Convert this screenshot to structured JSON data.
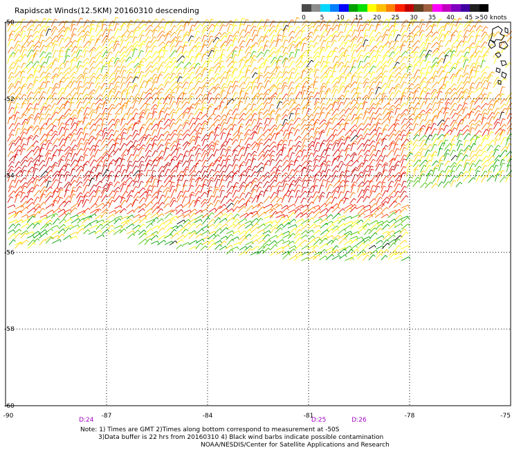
{
  "title": "Rapidscat Winds(12.5KM) 20160310 descending",
  "legend": {
    "unit": ">50 knots",
    "labels": [
      "0",
      "5",
      "10",
      "15",
      "20",
      "25",
      "30",
      "35",
      "40",
      "45"
    ],
    "colors": [
      "#4a4a4a",
      "#8c8c8c",
      "#00d8ff",
      "#0080ff",
      "#0000ff",
      "#00a000",
      "#00e000",
      "#ffff00",
      "#ffc000",
      "#ff8000",
      "#ff2000",
      "#c00000",
      "#604020",
      "#a06040",
      "#ff00ff",
      "#c000c0",
      "#8000c0",
      "#4000a0",
      "#202020",
      "#000000"
    ]
  },
  "lat_labels": [
    "-50",
    "-52",
    "-54",
    "-56",
    "-58",
    "-60"
  ],
  "lat_values": [
    -50,
    -52,
    -54,
    -56,
    -58,
    -60
  ],
  "lon_labels": [
    "-90",
    "-87",
    "-84",
    "-81",
    "-78",
    "-75"
  ],
  "lon_values": [
    -90,
    -87,
    -84,
    -81,
    -78,
    -75
  ],
  "time_labels": [
    {
      "text": "D:24",
      "lon": -87.6
    },
    {
      "text": "D:25",
      "lon": -80.7
    },
    {
      "text": "D:26",
      "lon": -79.5
    }
  ],
  "map_extent": {
    "lon_min": -90,
    "lon_max": -75,
    "lat_min": -60,
    "lat_max": -50
  },
  "notes": {
    "line1": "Note: 1) Times are GMT 2)Times along bottom correspond to measurement at -50S",
    "line2": "3)Data buffer is 22 hrs from 20160310 4) Black wind barbs indicate possible contamination",
    "line3": "NOAA/NESDIS/Center for Satellite Applications and Research"
  }
}
